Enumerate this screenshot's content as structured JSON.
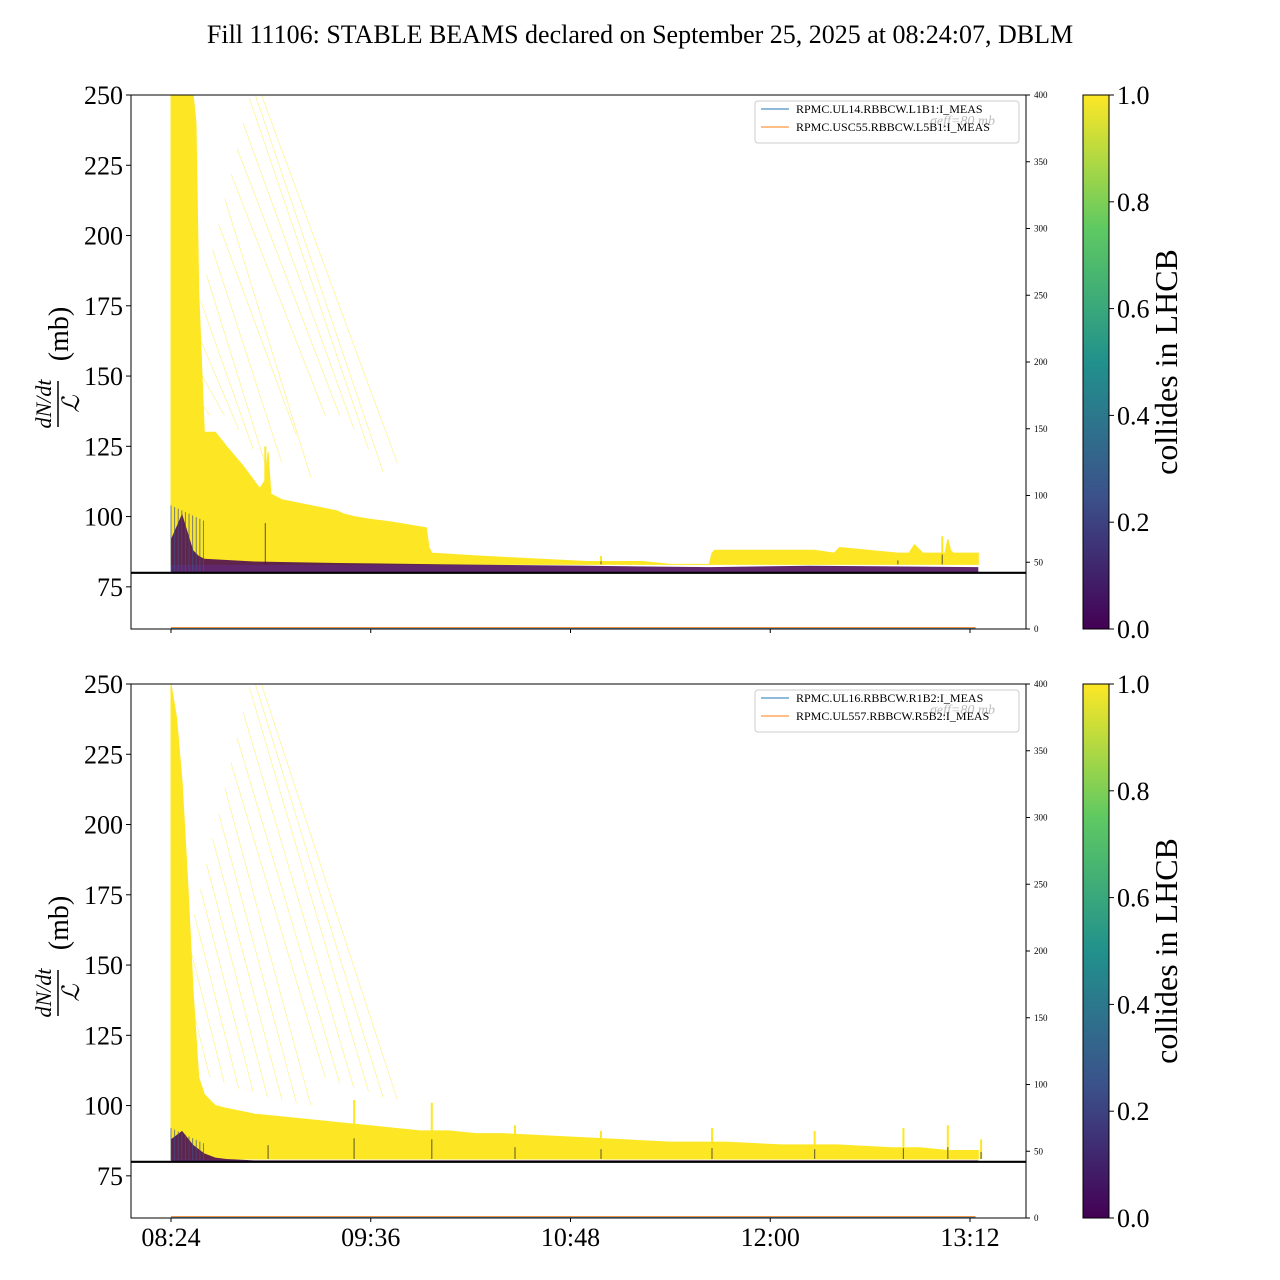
{
  "title": "Fill 11106: STABLE BEAMS declared on September 25, 2025 at 08:24:07, DBLM",
  "colors": {
    "yellow": "#fde725",
    "purple": "#440154",
    "blue_line": "#1f77b4",
    "orange_line": "#ff7f0e",
    "threshold": "#000000"
  },
  "colormap": [
    "#440154",
    "#3b528b",
    "#21918c",
    "#5ec962",
    "#fde725"
  ],
  "chart_data": [
    {
      "type": "line",
      "panel": "top",
      "ylabel_math": "dN/dt",
      "ylabel_denominator": "ℒ",
      "ylabel_unit": "(mb)",
      "ylim": [
        60,
        250
      ],
      "yticks": [
        "75",
        "100",
        "125",
        "150",
        "175",
        "200",
        "225",
        "250"
      ],
      "ytick_values": [
        75,
        100,
        125,
        150,
        175,
        200,
        225,
        250
      ],
      "y2lim": [
        0,
        400
      ],
      "y2ticks": [
        "0",
        "50",
        "100",
        "150",
        "200",
        "250",
        "300",
        "350",
        "400"
      ],
      "xlim_minutes": [
        -12,
        256
      ],
      "xticks": [],
      "xtick_minutes": [
        0,
        72,
        144,
        216,
        288
      ],
      "threshold_y": 80,
      "threshold_legend_tail": "σeff=80 mb",
      "legend": [
        "RPMC.UL14.RBBCW.L1B1:I_MEAS",
        "RPMC.USC55.RBBCW.L5B1:I_MEAS"
      ],
      "colorbar_label": "collides in LHCB",
      "colorbar_ticks": [
        "0.0",
        "0.2",
        "0.4",
        "0.6",
        "0.8",
        "1.0"
      ],
      "yellow_envelope": {
        "minutes": [
          0,
          3,
          6,
          8,
          9,
          10,
          12,
          16,
          20,
          26,
          32,
          34,
          35,
          36,
          40,
          50,
          60,
          62,
          66,
          72,
          80,
          92,
          93,
          94,
          110,
          130,
          150,
          165,
          170,
          180,
          194,
          195,
          196,
          214,
          232,
          239,
          241,
          262,
          266,
          268,
          271,
          279,
          280,
          281,
          282,
          291
        ],
        "y": [
          250,
          250,
          250,
          250,
          240,
          180,
          130,
          130,
          125,
          118,
          110,
          113,
          123,
          108,
          106,
          104,
          102,
          101,
          100,
          99,
          98,
          96,
          89,
          87,
          86,
          85,
          84,
          84,
          84,
          83,
          83,
          87,
          88,
          88,
          88,
          87,
          89,
          87,
          87,
          90,
          87,
          87,
          92,
          88,
          87,
          87
        ]
      },
      "yellow_floor": 83,
      "purple_band": {
        "minutes": [
          0,
          4,
          8,
          10,
          12,
          30,
          60,
          100,
          150,
          194,
          230,
          291
        ],
        "y": [
          92,
          101,
          88,
          86,
          85,
          84,
          83.5,
          83,
          82.5,
          82,
          82.5,
          82
        ]
      },
      "spikes": [
        {
          "minute": 34,
          "y": 125
        },
        {
          "minute": 155,
          "y": 86
        },
        {
          "minute": 262,
          "y": 87
        },
        {
          "minute": 278,
          "y": 93
        }
      ]
    },
    {
      "type": "line",
      "panel": "bottom",
      "ylabel_math": "dN/dt",
      "ylabel_denominator": "ℒ",
      "ylabel_unit": "(mb)",
      "ylim": [
        60,
        250
      ],
      "yticks": [
        "75",
        "100",
        "125",
        "150",
        "175",
        "200",
        "225",
        "250"
      ],
      "ytick_values": [
        75,
        100,
        125,
        150,
        175,
        200,
        225,
        250
      ],
      "y2lim": [
        0,
        400
      ],
      "y2ticks": [
        "0",
        "50",
        "100",
        "150",
        "200",
        "250",
        "300",
        "350",
        "400"
      ],
      "xlim_minutes": [
        -12,
        256
      ],
      "xticks": [
        "08:24",
        "09:36",
        "10:48",
        "12:00",
        "13:12"
      ],
      "xtick_minutes": [
        0,
        72,
        144,
        216,
        288
      ],
      "threshold_y": 80,
      "threshold_legend_tail": "σeff=80 mb",
      "legend": [
        "RPMC.UL16.RBBCW.R1B2:I_MEAS",
        "RPMC.UL557.RBBCW.R5B2:I_MEAS"
      ],
      "colorbar_label": "collides in LHCB",
      "colorbar_ticks": [
        "0.0",
        "0.2",
        "0.4",
        "0.6",
        "0.8",
        "1.0"
      ],
      "yellow_envelope": {
        "minutes": [
          0,
          2,
          4,
          6,
          8,
          10,
          12,
          14,
          16,
          20,
          30,
          40,
          50,
          60,
          70,
          80,
          90,
          100,
          110,
          120,
          140,
          160,
          180,
          200,
          220,
          240,
          260,
          270,
          280,
          291
        ],
        "y": [
          250,
          238,
          215,
          180,
          140,
          110,
          104,
          102,
          100,
          99,
          97,
          96,
          95,
          94,
          93,
          92,
          91,
          91,
          90,
          90,
          89,
          88,
          87,
          87,
          86,
          86,
          85,
          85,
          84,
          84
        ]
      },
      "yellow_floor": 81,
      "purple_band": {
        "minutes": [
          0,
          4,
          8,
          12,
          16,
          20,
          30,
          291
        ],
        "y": [
          88,
          91,
          86,
          83,
          81.5,
          81,
          80.5,
          80.5
        ]
      },
      "spikes": [
        {
          "minute": 35,
          "y": 95
        },
        {
          "minute": 66,
          "y": 102
        },
        {
          "minute": 94,
          "y": 101
        },
        {
          "minute": 124,
          "y": 93
        },
        {
          "minute": 155,
          "y": 91
        },
        {
          "minute": 195,
          "y": 92
        },
        {
          "minute": 232,
          "y": 91
        },
        {
          "minute": 264,
          "y": 92
        },
        {
          "minute": 280,
          "y": 93
        },
        {
          "minute": 292,
          "y": 88
        }
      ]
    }
  ]
}
